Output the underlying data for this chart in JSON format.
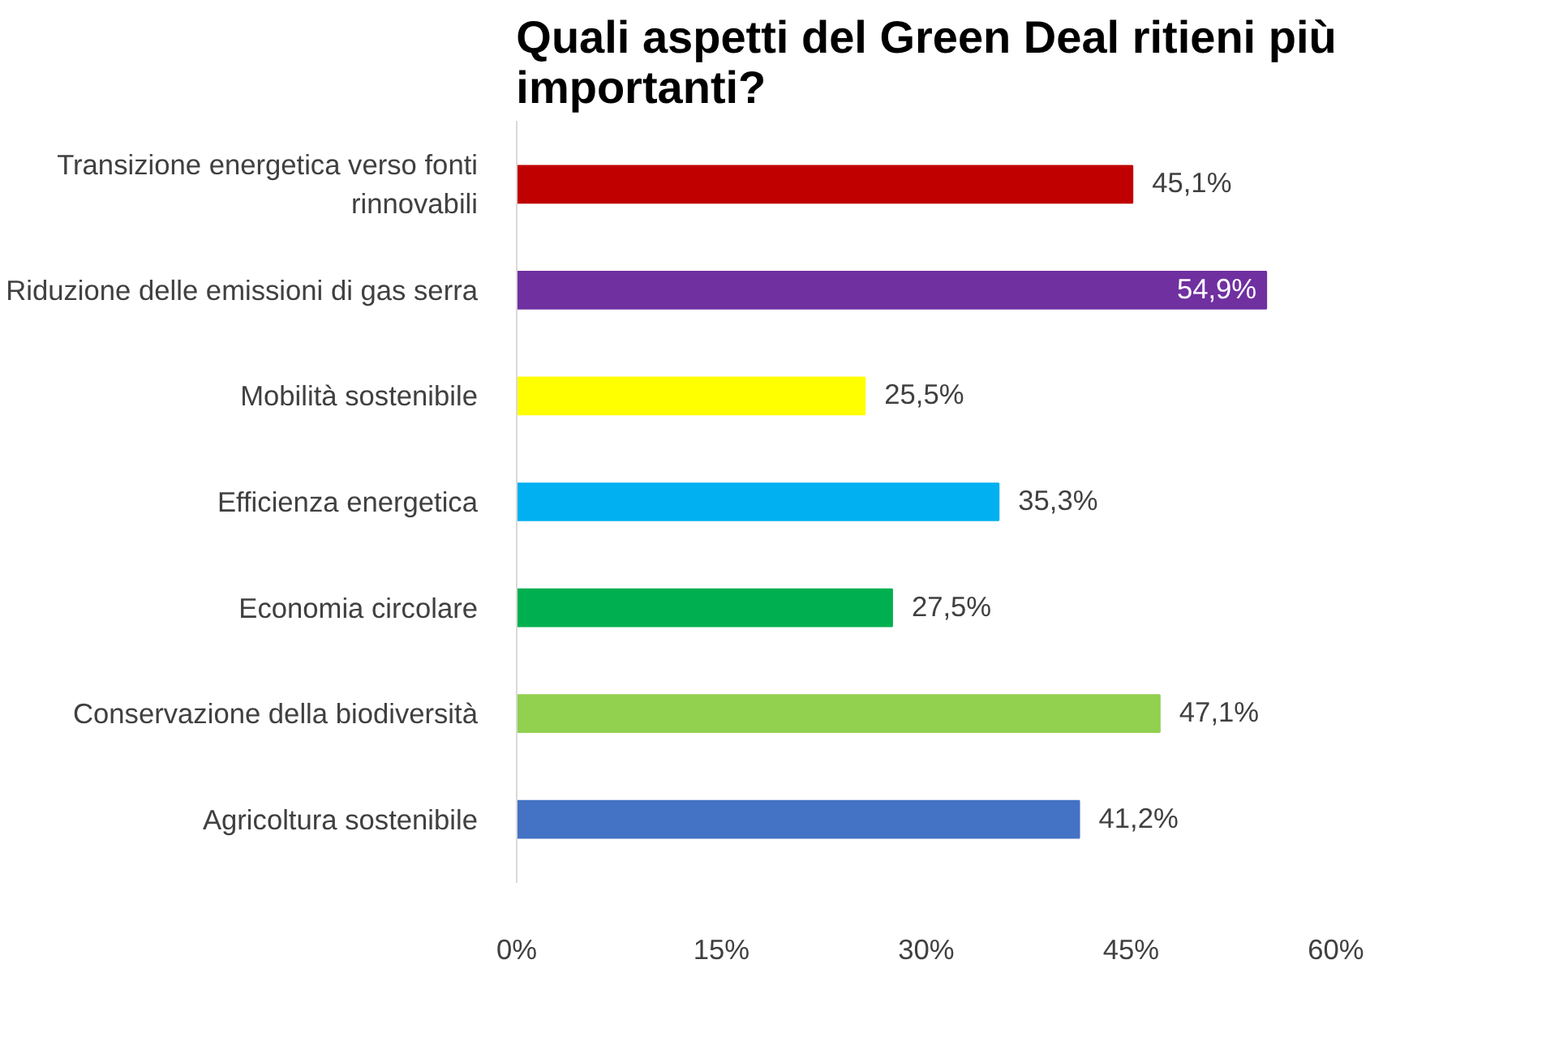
{
  "chart_data": {
    "type": "bar",
    "orientation": "horizontal",
    "title": "Quali aspetti del Green Deal ritieni più importanti?",
    "categories": [
      "Transizione energetica verso fonti rinnovabili",
      "Riduzione delle emissioni di gas serra",
      "Mobilità sostenibile",
      "Efficienza energetica",
      "Economia circolare",
      "Conservazione della biodiversità",
      "Agricoltura sostenibile"
    ],
    "values": [
      45.1,
      54.9,
      25.5,
      35.3,
      27.5,
      47.1,
      41.2
    ],
    "colors": [
      "#c00000",
      "#7030a0",
      "#ffff00",
      "#00b0f0",
      "#00b050",
      "#92d050",
      "#4472c4"
    ],
    "value_labels": [
      "45,1%",
      "54,9%",
      "25,5%",
      "35,3%",
      "27,5%",
      "47,1%",
      "41,2%"
    ],
    "xlim": [
      0,
      60
    ],
    "xticks": [
      {
        "value": 0,
        "label": "0%"
      },
      {
        "value": 15,
        "label": "15%"
      },
      {
        "value": 30,
        "label": "30%"
      },
      {
        "value": 45,
        "label": "45%"
      },
      {
        "value": 60,
        "label": "60%"
      }
    ],
    "grid": false
  }
}
